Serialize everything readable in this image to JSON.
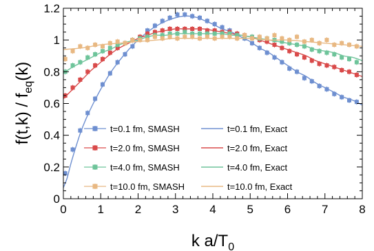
{
  "chart_data": {
    "type": "scatter",
    "xlabel_main": "k a/T",
    "xlabel_sub": "0",
    "ylabel_main": "f(t,k) / f",
    "ylabel_sub": "eq",
    "ylabel_tail": "(k)",
    "xlim": [
      0,
      8
    ],
    "ylim": [
      0,
      1.2
    ],
    "x_major_ticks": [
      0,
      1,
      2,
      3,
      4,
      5,
      6,
      7,
      8
    ],
    "x_tick_labels": [
      "0",
      "1",
      "2",
      "3",
      "4",
      "5",
      "6",
      "7",
      "8"
    ],
    "y_major_ticks": [
      0,
      0.2,
      0.4,
      0.6,
      0.8,
      1.0,
      1.2
    ],
    "y_tick_labels": [
      "0",
      "0.2",
      "0.4",
      "0.6",
      "0.8",
      "1",
      "1.2"
    ],
    "grid": false,
    "legend_placement": "bottom",
    "series": [
      {
        "name": "t=0.1 fm, SMASH",
        "exact_name": "t=0.1 fm, Exact",
        "color": "#6e8fd0",
        "points": [
          [
            0.05,
            0.16
          ],
          [
            0.25,
            0.31
          ],
          [
            0.45,
            0.43
          ],
          [
            0.65,
            0.54
          ],
          [
            0.85,
            0.63
          ],
          [
            1.05,
            0.72
          ],
          [
            1.25,
            0.79
          ],
          [
            1.45,
            0.86
          ],
          [
            1.65,
            0.91
          ],
          [
            1.85,
            0.96
          ],
          [
            2.05,
            1.01
          ],
          [
            2.25,
            1.06
          ],
          [
            2.45,
            1.09
          ],
          [
            2.65,
            1.12
          ],
          [
            2.85,
            1.14
          ],
          [
            3.05,
            1.16
          ],
          [
            3.25,
            1.16
          ],
          [
            3.45,
            1.15
          ],
          [
            3.65,
            1.14
          ],
          [
            3.85,
            1.12
          ],
          [
            4.05,
            1.1
          ],
          [
            4.25,
            1.08
          ],
          [
            4.45,
            1.06
          ],
          [
            4.65,
            1.04
          ],
          [
            4.85,
            1.01
          ],
          [
            5.05,
            0.98
          ],
          [
            5.25,
            0.95
          ],
          [
            5.45,
            0.92
          ],
          [
            5.65,
            0.89
          ],
          [
            5.85,
            0.86
          ],
          [
            6.05,
            0.82
          ],
          [
            6.25,
            0.8
          ],
          [
            6.45,
            0.76
          ],
          [
            6.65,
            0.74
          ],
          [
            6.85,
            0.71
          ],
          [
            7.05,
            0.69
          ],
          [
            7.25,
            0.66
          ],
          [
            7.45,
            0.64
          ],
          [
            7.65,
            0.62
          ],
          [
            7.85,
            0.61
          ]
        ],
        "exact": [
          [
            0.0,
            0.07
          ],
          [
            0.1,
            0.13
          ],
          [
            0.2,
            0.22
          ],
          [
            0.3,
            0.3
          ],
          [
            0.45,
            0.41
          ],
          [
            0.6,
            0.5
          ],
          [
            0.8,
            0.6
          ],
          [
            1.0,
            0.69
          ],
          [
            1.25,
            0.79
          ],
          [
            1.5,
            0.87
          ],
          [
            1.75,
            0.94
          ],
          [
            2.0,
            1.0
          ],
          [
            2.25,
            1.05
          ],
          [
            2.5,
            1.09
          ],
          [
            2.75,
            1.12
          ],
          [
            3.0,
            1.14
          ],
          [
            3.2,
            1.15
          ],
          [
            3.4,
            1.15
          ],
          [
            3.6,
            1.14
          ],
          [
            3.8,
            1.12
          ],
          [
            4.0,
            1.1
          ],
          [
            4.25,
            1.07
          ],
          [
            4.5,
            1.05
          ],
          [
            4.75,
            1.02
          ],
          [
            5.0,
            0.99
          ],
          [
            5.25,
            0.95
          ],
          [
            5.5,
            0.92
          ],
          [
            5.75,
            0.88
          ],
          [
            6.0,
            0.84
          ],
          [
            6.25,
            0.8
          ],
          [
            6.5,
            0.77
          ],
          [
            6.75,
            0.73
          ],
          [
            7.0,
            0.7
          ],
          [
            7.25,
            0.67
          ],
          [
            7.5,
            0.64
          ],
          [
            7.75,
            0.62
          ],
          [
            8.0,
            0.59
          ]
        ]
      },
      {
        "name": "t=2.0 fm, SMASH",
        "exact_name": "t=2.0 fm, Exact",
        "color": "#d94a4a",
        "points": [
          [
            0.05,
            0.65
          ],
          [
            0.25,
            0.7
          ],
          [
            0.45,
            0.75
          ],
          [
            0.65,
            0.8
          ],
          [
            0.85,
            0.84
          ],
          [
            1.05,
            0.88
          ],
          [
            1.25,
            0.92
          ],
          [
            1.45,
            0.95
          ],
          [
            1.65,
            0.98
          ],
          [
            1.85,
            1.0
          ],
          [
            2.05,
            1.02
          ],
          [
            2.25,
            1.04
          ],
          [
            2.45,
            1.05
          ],
          [
            2.65,
            1.06
          ],
          [
            2.85,
            1.07
          ],
          [
            3.05,
            1.07
          ],
          [
            3.25,
            1.07
          ],
          [
            3.45,
            1.07
          ],
          [
            3.65,
            1.07
          ],
          [
            3.85,
            1.06
          ],
          [
            4.05,
            1.06
          ],
          [
            4.25,
            1.05
          ],
          [
            4.45,
            1.05
          ],
          [
            4.65,
            1.04
          ],
          [
            4.85,
            1.03
          ],
          [
            5.05,
            1.02
          ],
          [
            5.25,
            1.0
          ],
          [
            5.45,
            0.99
          ],
          [
            5.65,
            0.97
          ],
          [
            5.85,
            0.95
          ],
          [
            6.05,
            0.93
          ],
          [
            6.25,
            0.91
          ],
          [
            6.45,
            0.89
          ],
          [
            6.65,
            0.87
          ],
          [
            6.85,
            0.85
          ],
          [
            7.05,
            0.84
          ],
          [
            7.25,
            0.83
          ],
          [
            7.45,
            0.81
          ],
          [
            7.65,
            0.8
          ],
          [
            7.85,
            0.78
          ]
        ],
        "exact": [
          [
            0.0,
            0.63
          ],
          [
            0.25,
            0.69
          ],
          [
            0.5,
            0.75
          ],
          [
            0.75,
            0.81
          ],
          [
            1.0,
            0.86
          ],
          [
            1.25,
            0.91
          ],
          [
            1.5,
            0.95
          ],
          [
            1.75,
            0.98
          ],
          [
            2.0,
            1.01
          ],
          [
            2.25,
            1.03
          ],
          [
            2.5,
            1.05
          ],
          [
            2.75,
            1.06
          ],
          [
            3.0,
            1.07
          ],
          [
            3.25,
            1.07
          ],
          [
            3.5,
            1.07
          ],
          [
            3.75,
            1.07
          ],
          [
            4.0,
            1.06
          ],
          [
            4.25,
            1.05
          ],
          [
            4.5,
            1.04
          ],
          [
            4.75,
            1.03
          ],
          [
            5.0,
            1.02
          ],
          [
            5.25,
            1.0
          ],
          [
            5.5,
            0.98
          ],
          [
            5.75,
            0.96
          ],
          [
            6.0,
            0.94
          ],
          [
            6.25,
            0.92
          ],
          [
            6.5,
            0.9
          ],
          [
            6.75,
            0.87
          ],
          [
            7.0,
            0.85
          ],
          [
            7.25,
            0.83
          ],
          [
            7.5,
            0.81
          ],
          [
            7.75,
            0.79
          ],
          [
            8.0,
            0.77
          ]
        ]
      },
      {
        "name": "t=4.0 fm, SMASH",
        "exact_name": "t=4.0 fm, Exact",
        "color": "#6ec49a",
        "points": [
          [
            0.05,
            0.8
          ],
          [
            0.25,
            0.84
          ],
          [
            0.45,
            0.86
          ],
          [
            0.65,
            0.89
          ],
          [
            0.85,
            0.91
          ],
          [
            1.05,
            0.93
          ],
          [
            1.25,
            0.95
          ],
          [
            1.45,
            0.97
          ],
          [
            1.65,
            0.98
          ],
          [
            1.85,
            1.0
          ],
          [
            2.05,
            1.01
          ],
          [
            2.25,
            1.02
          ],
          [
            2.45,
            1.03
          ],
          [
            2.65,
            1.03
          ],
          [
            2.85,
            1.04
          ],
          [
            3.05,
            1.04
          ],
          [
            3.25,
            1.05
          ],
          [
            3.45,
            1.04
          ],
          [
            3.65,
            1.04
          ],
          [
            3.85,
            1.04
          ],
          [
            4.05,
            1.04
          ],
          [
            4.25,
            1.04
          ],
          [
            4.45,
            1.04
          ],
          [
            4.65,
            1.03
          ],
          [
            4.85,
            1.02
          ],
          [
            5.05,
            1.02
          ],
          [
            5.25,
            1.01
          ],
          [
            5.45,
            1.01
          ],
          [
            5.65,
            1.0
          ],
          [
            5.85,
            0.99
          ],
          [
            6.05,
            0.98
          ],
          [
            6.25,
            0.97
          ],
          [
            6.45,
            0.96
          ],
          [
            6.65,
            0.94
          ],
          [
            6.85,
            0.93
          ],
          [
            7.05,
            0.92
          ],
          [
            7.25,
            0.91
          ],
          [
            7.45,
            0.89
          ],
          [
            7.65,
            0.88
          ],
          [
            7.85,
            0.86
          ]
        ],
        "exact": [
          [
            0.0,
            0.79
          ],
          [
            0.25,
            0.83
          ],
          [
            0.5,
            0.86
          ],
          [
            0.75,
            0.89
          ],
          [
            1.0,
            0.92
          ],
          [
            1.25,
            0.94
          ],
          [
            1.5,
            0.97
          ],
          [
            1.75,
            0.99
          ],
          [
            2.0,
            1.0
          ],
          [
            2.25,
            1.02
          ],
          [
            2.5,
            1.03
          ],
          [
            2.75,
            1.03
          ],
          [
            3.0,
            1.04
          ],
          [
            3.25,
            1.04
          ],
          [
            3.5,
            1.04
          ],
          [
            3.75,
            1.04
          ],
          [
            4.0,
            1.04
          ],
          [
            4.25,
            1.04
          ],
          [
            4.5,
            1.03
          ],
          [
            4.75,
            1.03
          ],
          [
            5.0,
            1.02
          ],
          [
            5.25,
            1.01
          ],
          [
            5.5,
            1.0
          ],
          [
            5.75,
            0.99
          ],
          [
            6.0,
            0.98
          ],
          [
            6.25,
            0.97
          ],
          [
            6.5,
            0.96
          ],
          [
            6.75,
            0.94
          ],
          [
            7.0,
            0.93
          ],
          [
            7.25,
            0.92
          ],
          [
            7.5,
            0.9
          ],
          [
            7.75,
            0.89
          ],
          [
            8.0,
            0.87
          ]
        ]
      },
      {
        "name": "t=10.0 fm, SMASH",
        "exact_name": "t=10.0 fm, Exact",
        "color": "#e8b882",
        "points": [
          [
            0.05,
            0.88
          ],
          [
            0.25,
            0.93
          ],
          [
            0.45,
            0.96
          ],
          [
            0.65,
            0.95
          ],
          [
            0.85,
            0.97
          ],
          [
            1.05,
            0.96
          ],
          [
            1.25,
            0.98
          ],
          [
            1.45,
            0.99
          ],
          [
            1.65,
            0.98
          ],
          [
            1.85,
            1.0
          ],
          [
            2.05,
            1.0
          ],
          [
            2.25,
            1.0
          ],
          [
            2.45,
            1.02
          ],
          [
            2.65,
            1.01
          ],
          [
            2.85,
            1.02
          ],
          [
            3.05,
            1.01
          ],
          [
            3.25,
            1.02
          ],
          [
            3.45,
            1.02
          ],
          [
            3.65,
            1.01
          ],
          [
            3.85,
            1.02
          ],
          [
            4.05,
            1.01
          ],
          [
            4.25,
            1.02
          ],
          [
            4.45,
            1.02
          ],
          [
            4.65,
            1.01
          ],
          [
            4.85,
            1.03
          ],
          [
            5.05,
            1.01
          ],
          [
            5.25,
            1.02
          ],
          [
            5.45,
            1.01
          ],
          [
            5.65,
            1.03
          ],
          [
            5.85,
            1.01
          ],
          [
            6.05,
            1.0
          ],
          [
            6.25,
            1.02
          ],
          [
            6.45,
            0.99
          ],
          [
            6.65,
            1.0
          ],
          [
            6.85,
            0.98
          ],
          [
            7.05,
            1.0
          ],
          [
            7.25,
            0.97
          ],
          [
            7.45,
            0.98
          ],
          [
            7.65,
            0.97
          ],
          [
            7.85,
            0.96
          ]
        ],
        "exact": [
          [
            0.0,
            0.94
          ],
          [
            0.5,
            0.95
          ],
          [
            1.0,
            0.97
          ],
          [
            1.5,
            0.98
          ],
          [
            2.0,
            0.99
          ],
          [
            2.5,
            1.0
          ],
          [
            3.0,
            1.01
          ],
          [
            3.5,
            1.01
          ],
          [
            4.0,
            1.01
          ],
          [
            4.5,
            1.01
          ],
          [
            5.0,
            1.01
          ],
          [
            5.5,
            1.0
          ],
          [
            6.0,
            1.0
          ],
          [
            6.5,
            0.99
          ],
          [
            7.0,
            0.98
          ],
          [
            7.5,
            0.97
          ],
          [
            8.0,
            0.96
          ]
        ]
      }
    ]
  }
}
